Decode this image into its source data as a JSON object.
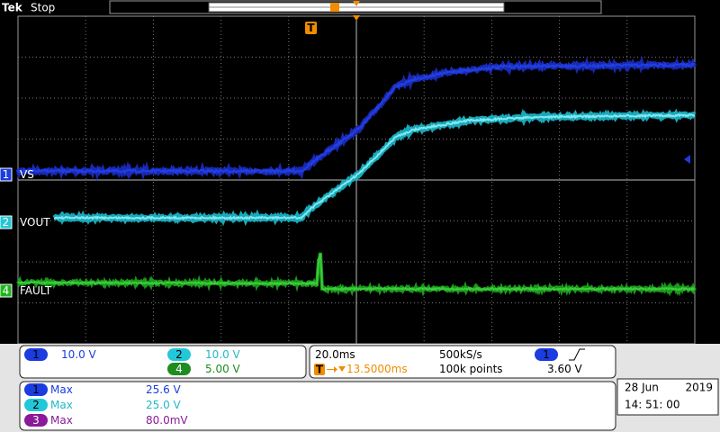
{
  "header": {
    "brand": "Tek",
    "status": "Stop",
    "trigger_marker": "T"
  },
  "channels": [
    {
      "number": "1",
      "label": "VS",
      "scale": "10.0 V"
    },
    {
      "number": "2",
      "label": "VOUT",
      "scale": "10.0 V"
    },
    {
      "number": "4",
      "label": "FAULT",
      "scale": "5.00 V"
    }
  ],
  "timebase": {
    "time_per_div": "20.0ms",
    "sample_rate": "500kS/s",
    "trigger_icon": "T",
    "trigger_position": "13.5000ms",
    "record_length": "100k points",
    "trigger_channel": "1",
    "trigger_level": "3.60 V"
  },
  "measurements": [
    {
      "channel": "1",
      "type": "Max",
      "value": "25.6 V"
    },
    {
      "channel": "2",
      "type": "Max",
      "value": "25.0 V"
    },
    {
      "channel": "3",
      "type": "Max",
      "value": "80.0mV"
    }
  ],
  "datetime": {
    "date": "28 Jun",
    "year": "2019",
    "time": "14: 51: 00"
  }
}
